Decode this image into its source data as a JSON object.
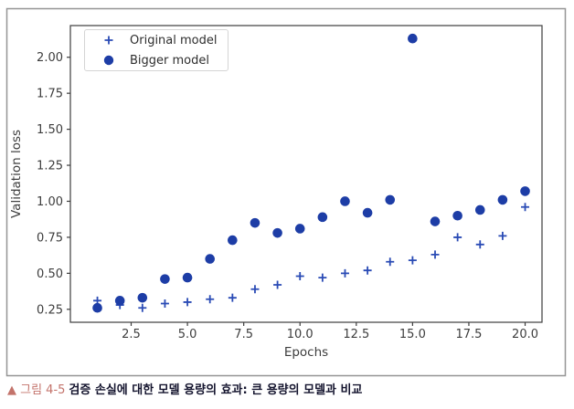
{
  "chart_data": {
    "type": "scatter",
    "xlabel": "Epochs",
    "ylabel": "Validation loss",
    "x": [
      1,
      2,
      3,
      4,
      5,
      6,
      7,
      8,
      9,
      10,
      11,
      12,
      13,
      14,
      15,
      16,
      17,
      18,
      19,
      20
    ],
    "series": [
      {
        "name": "Original model",
        "marker": "plus",
        "color": "#2a4bb5",
        "values": [
          0.31,
          0.28,
          0.26,
          0.29,
          0.3,
          0.32,
          0.33,
          0.39,
          0.42,
          0.48,
          0.47,
          0.5,
          0.52,
          0.58,
          0.59,
          0.63,
          0.75,
          0.7,
          0.76,
          0.96
        ]
      },
      {
        "name": "Bigger model",
        "marker": "circle",
        "color": "#1d3da6",
        "values": [
          0.26,
          0.31,
          0.33,
          0.46,
          0.47,
          0.6,
          0.73,
          0.85,
          0.78,
          0.81,
          0.89,
          1.0,
          0.92,
          1.01,
          2.13,
          0.86,
          0.9,
          0.94,
          1.01,
          1.07
        ]
      }
    ],
    "xlim": [
      -0.2,
      20.75
    ],
    "ylim": [
      0.16,
      2.22
    ],
    "x_ticks": [
      2.5,
      5,
      7.5,
      10,
      12.5,
      15,
      17.5,
      20
    ],
    "x_tick_labels": [
      "2.5",
      "5.0",
      "7.5",
      "10.0",
      "12.5",
      "15.0",
      "17.5",
      "20.0"
    ],
    "y_ticks": [
      0.25,
      0.5,
      0.75,
      1,
      1.25,
      1.5,
      1.75,
      2
    ],
    "y_tick_labels": [
      "0.25",
      "0.50",
      "0.75",
      "1.00",
      "1.25",
      "1.50",
      "1.75",
      "2.00"
    ],
    "grid": false,
    "legend_position": "upper left"
  },
  "caption": {
    "prefix": "▲ 그림 4-5",
    "text": "검증 손실에 대한 모델 용량의 효과: 큰 용량의 모델과 비교"
  },
  "colors": {
    "axis": "#3d3d3d",
    "figure_border": "#959595",
    "legend_border": "#d5d5d5",
    "caption_prefix": "#c3736b",
    "caption_text": "#14142e",
    "background": "#ffffff"
  }
}
